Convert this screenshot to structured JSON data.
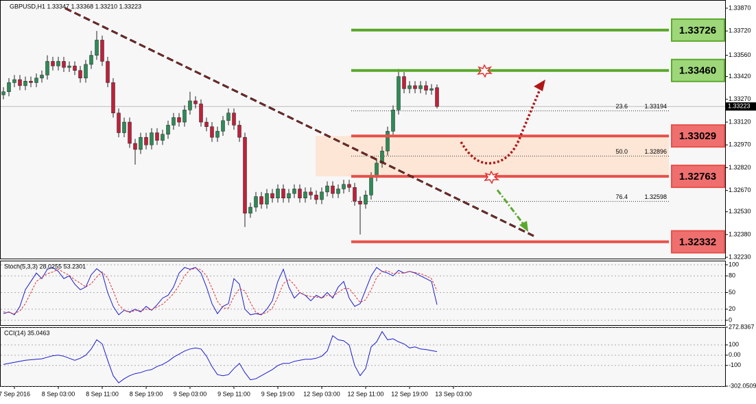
{
  "chart_data": [
    {
      "type": "candlestick",
      "title": "GBPUSD,H1  1.33347 1.33368 1.33210 1.33223",
      "up_color": "#2e8b57",
      "down_color": "#c0203a",
      "wick_color": "#222222",
      "xlim": [
        -0.625,
        131.5
      ],
      "ylim": [
        1.32217,
        1.33924
      ],
      "yticks": [
        {
          "value": 1.3387,
          "label": "1.33870"
        },
        {
          "value": 1.3372,
          "label": "1.33720"
        },
        {
          "value": 1.3356,
          "label": "1.33560"
        },
        {
          "value": 1.3342,
          "label": "1.33420"
        },
        {
          "value": 1.3327,
          "label": "1.33270"
        },
        {
          "value": 1.3312,
          "label": "1.33120"
        },
        {
          "value": 1.3297,
          "label": "1.32970"
        },
        {
          "value": 1.3282,
          "label": "1.32820"
        },
        {
          "value": 1.3267,
          "label": "1.32670"
        },
        {
          "value": 1.3253,
          "label": "1.32530"
        },
        {
          "value": 1.3238,
          "label": "1.32380"
        },
        {
          "value": 1.3223,
          "label": "1.32230"
        }
      ],
      "xticks": [
        {
          "value": 2,
          "label": "7 Sep 2016"
        },
        {
          "value": 10,
          "label": "8 Sep 03:00"
        },
        {
          "value": 18,
          "label": "8 Sep 11:00"
        },
        {
          "value": 26,
          "label": "8 Sep 19:00"
        },
        {
          "value": 34,
          "label": "9 Sep 03:00"
        },
        {
          "value": 42,
          "label": "9 Sep 11:00"
        },
        {
          "value": 50,
          "label": "9 Sep 19:00"
        },
        {
          "value": 58,
          "label": "12 Sep 03:00"
        },
        {
          "value": 66,
          "label": "12 Sep 11:00"
        },
        {
          "value": 74,
          "label": "12 Sep 19:00"
        },
        {
          "value": 82,
          "label": "13 Sep 03:00"
        }
      ],
      "open": [
        1.333,
        1.3332,
        1.3338,
        1.334,
        1.3336,
        1.3339,
        1.3338,
        1.3341,
        1.3343,
        1.3352,
        1.3349,
        1.3352,
        1.3348,
        1.3349,
        1.3346,
        1.3341,
        1.335,
        1.3356,
        1.3366,
        1.3352,
        1.3338,
        1.3318,
        1.3305,
        1.3312,
        1.3298,
        1.3294,
        1.3302,
        1.3297,
        1.3305,
        1.33,
        1.3304,
        1.331,
        1.3315,
        1.3312,
        1.332,
        1.3326,
        1.3324,
        1.3312,
        1.3309,
        1.3302,
        1.3306,
        1.3313,
        1.3318,
        1.331,
        1.3302,
        1.3252,
        1.3256,
        1.3263,
        1.3258,
        1.3265,
        1.3262,
        1.3268,
        1.3262,
        1.3265,
        1.3268,
        1.3262,
        1.3266,
        1.3264,
        1.3261,
        1.3266,
        1.327,
        1.3265,
        1.3268,
        1.3271,
        1.3269,
        1.326,
        1.3258,
        1.3264,
        1.3276,
        1.3285,
        1.3293,
        1.3306,
        1.332,
        1.3342,
        1.3334,
        1.3336,
        1.3334,
        1.3336,
        1.3333,
        1.33347
      ],
      "high": [
        1.3335,
        1.3341,
        1.3343,
        1.3343,
        1.3342,
        1.3342,
        1.3344,
        1.3346,
        1.3356,
        1.3355,
        1.3355,
        1.3355,
        1.3352,
        1.3352,
        1.3349,
        1.3353,
        1.3359,
        1.3372,
        1.3369,
        1.3355,
        1.3341,
        1.3321,
        1.3315,
        1.3315,
        1.3301,
        1.3305,
        1.3305,
        1.3308,
        1.3308,
        1.3307,
        1.3313,
        1.3318,
        1.3318,
        1.3323,
        1.3332,
        1.3329,
        1.3327,
        1.3315,
        1.3312,
        1.3309,
        1.3316,
        1.3321,
        1.3321,
        1.3313,
        1.3305,
        1.3259,
        1.3266,
        1.3266,
        1.3268,
        1.3268,
        1.3271,
        1.3271,
        1.3268,
        1.3271,
        1.3271,
        1.3269,
        1.3269,
        1.3267,
        1.3269,
        1.3273,
        1.3273,
        1.3271,
        1.3274,
        1.3274,
        1.3272,
        1.3263,
        1.3267,
        1.3279,
        1.3288,
        1.3296,
        1.3309,
        1.3323,
        1.3347,
        1.3345,
        1.3339,
        1.3339,
        1.3339,
        1.3339,
        1.3337,
        1.33368
      ],
      "low": [
        1.3327,
        1.3329,
        1.3335,
        1.3333,
        1.3333,
        1.3335,
        1.3335,
        1.3338,
        1.334,
        1.3346,
        1.3346,
        1.3345,
        1.3345,
        1.3343,
        1.3338,
        1.3338,
        1.3347,
        1.3353,
        1.3349,
        1.3335,
        1.3315,
        1.3302,
        1.3302,
        1.3295,
        1.3284,
        1.3291,
        1.3294,
        1.3294,
        1.3297,
        1.3297,
        1.3301,
        1.3307,
        1.3309,
        1.3309,
        1.3317,
        1.3321,
        1.3309,
        1.3306,
        1.3299,
        1.3299,
        1.3303,
        1.331,
        1.3307,
        1.3299,
        1.3243,
        1.3249,
        1.3253,
        1.3255,
        1.3255,
        1.3259,
        1.3259,
        1.3259,
        1.3259,
        1.3262,
        1.3259,
        1.3259,
        1.3261,
        1.3258,
        1.3258,
        1.3263,
        1.3262,
        1.3262,
        1.3265,
        1.3266,
        1.3257,
        1.3238,
        1.3255,
        1.3261,
        1.3273,
        1.3282,
        1.329,
        1.3303,
        1.3317,
        1.3331,
        1.3331,
        1.3331,
        1.3331,
        1.333,
        1.333,
        1.3321
      ],
      "close": [
        1.3332,
        1.3338,
        1.334,
        1.3336,
        1.3339,
        1.3338,
        1.3341,
        1.3343,
        1.3352,
        1.3349,
        1.3352,
        1.3348,
        1.3349,
        1.3346,
        1.3341,
        1.335,
        1.3356,
        1.3366,
        1.3352,
        1.3338,
        1.3318,
        1.3305,
        1.3312,
        1.3298,
        1.3294,
        1.3302,
        1.3297,
        1.3305,
        1.33,
        1.3304,
        1.331,
        1.3315,
        1.3312,
        1.332,
        1.3326,
        1.3324,
        1.3312,
        1.3309,
        1.3302,
        1.3306,
        1.3313,
        1.3318,
        1.331,
        1.3302,
        1.3252,
        1.3256,
        1.3263,
        1.3258,
        1.3265,
        1.3262,
        1.3268,
        1.3262,
        1.3265,
        1.3268,
        1.3262,
        1.3266,
        1.3264,
        1.3261,
        1.3266,
        1.327,
        1.3265,
        1.3268,
        1.3271,
        1.3269,
        1.326,
        1.3258,
        1.3264,
        1.3276,
        1.3285,
        1.3293,
        1.3306,
        1.332,
        1.3342,
        1.3334,
        1.3336,
        1.3334,
        1.3336,
        1.3333,
        1.3334,
        1.33223
      ],
      "levels": [
        {
          "value": 1.33726,
          "label": "1.33726",
          "color": "#5aa82a",
          "box_color": "#9ed77a"
        },
        {
          "value": 1.3346,
          "label": "1.33460",
          "color": "#5aa82a",
          "box_color": "#9ed77a"
        },
        {
          "value": 1.33029,
          "label": "1.33029",
          "color": "#e8504a",
          "box_color": "#ef6f6f"
        },
        {
          "value": 1.32763,
          "label": "1.32763",
          "color": "#e8504a",
          "box_color": "#ef6f6f"
        },
        {
          "value": 1.32332,
          "label": "1.32332",
          "color": "#e8504a",
          "box_color": "#ef6f6f"
        }
      ],
      "zone_color": "#fde6d6",
      "fib": [
        {
          "ratio": "23.6",
          "value": 1.33194
        },
        {
          "ratio": "50.0",
          "value": 1.32896
        },
        {
          "ratio": "76.4",
          "value": 1.32598
        }
      ]
    },
    {
      "type": "line",
      "title": "Stoch(5,3,3) 28.0255 53.2301",
      "ylim": [
        -9.9,
        107.4
      ],
      "yticks": [
        100,
        80,
        50,
        20,
        0
      ],
      "series": [
        {
          "color": "#1a1ad0",
          "dash": false,
          "values": [
            12,
            15,
            10,
            25,
            55,
            70,
            85,
            75,
            92,
            95,
            88,
            75,
            80,
            65,
            55,
            60,
            82,
            93,
            85,
            50,
            25,
            10,
            18,
            15,
            20,
            15,
            25,
            18,
            28,
            40,
            45,
            60,
            85,
            95,
            92,
            95,
            85,
            60,
            30,
            12,
            25,
            30,
            75,
            65,
            20,
            10,
            12,
            10,
            20,
            35,
            70,
            92,
            60,
            40,
            50,
            45,
            35,
            45,
            40,
            50,
            40,
            60,
            70,
            40,
            25,
            30,
            55,
            80,
            95,
            88,
            85,
            80,
            90,
            85,
            88,
            85,
            80,
            75,
            70,
            28.0255
          ]
        },
        {
          "color": "#e03030",
          "dash": true,
          "values": [
            15,
            14,
            12,
            17,
            30,
            50,
            70,
            77,
            84,
            87,
            92,
            86,
            81,
            73,
            67,
            60,
            66,
            78,
            87,
            76,
            53,
            28,
            18,
            14,
            18,
            17,
            20,
            19,
            24,
            29,
            38,
            48,
            63,
            80,
            91,
            94,
            91,
            80,
            58,
            34,
            22,
            22,
            43,
            57,
            53,
            32,
            14,
            11,
            14,
            22,
            42,
            66,
            74,
            64,
            50,
            45,
            43,
            42,
            40,
            45,
            43,
            50,
            57,
            57,
            45,
            32,
            37,
            55,
            77,
            88,
            89,
            84,
            85,
            85,
            88,
            86,
            84,
            80,
            75,
            53.2301
          ]
        }
      ]
    },
    {
      "type": "line",
      "title": "CCI(14) 35.0463",
      "ylim": [
        -302.0509,
        272.8367
      ],
      "yticks": [
        272.8367,
        100,
        {
          "value": 0,
          "label": "0.00"
        },
        -100,
        -302.0509
      ],
      "series": [
        {
          "color": "#1a1ad0",
          "dash": false,
          "values": [
            -90,
            -80,
            -70,
            -60,
            -50,
            -45,
            -40,
            -35,
            -20,
            -5,
            0,
            -10,
            -30,
            -50,
            -30,
            0,
            60,
            150,
            110,
            -50,
            -200,
            -270,
            -230,
            -200,
            -180,
            -170,
            -150,
            -140,
            -110,
            -90,
            -60,
            -20,
            10,
            40,
            60,
            70,
            60,
            -10,
            -110,
            -190,
            -200,
            -190,
            -130,
            -80,
            -170,
            -240,
            -230,
            -200,
            -170,
            -140,
            -100,
            -80,
            -80,
            -60,
            -50,
            -40,
            -40,
            -30,
            -10,
            40,
            190,
            150,
            140,
            100,
            -100,
            -200,
            -130,
            80,
            130,
            230,
            150,
            160,
            130,
            110,
            70,
            80,
            60,
            55,
            45,
            35.0463
          ]
        }
      ]
    }
  ]
}
